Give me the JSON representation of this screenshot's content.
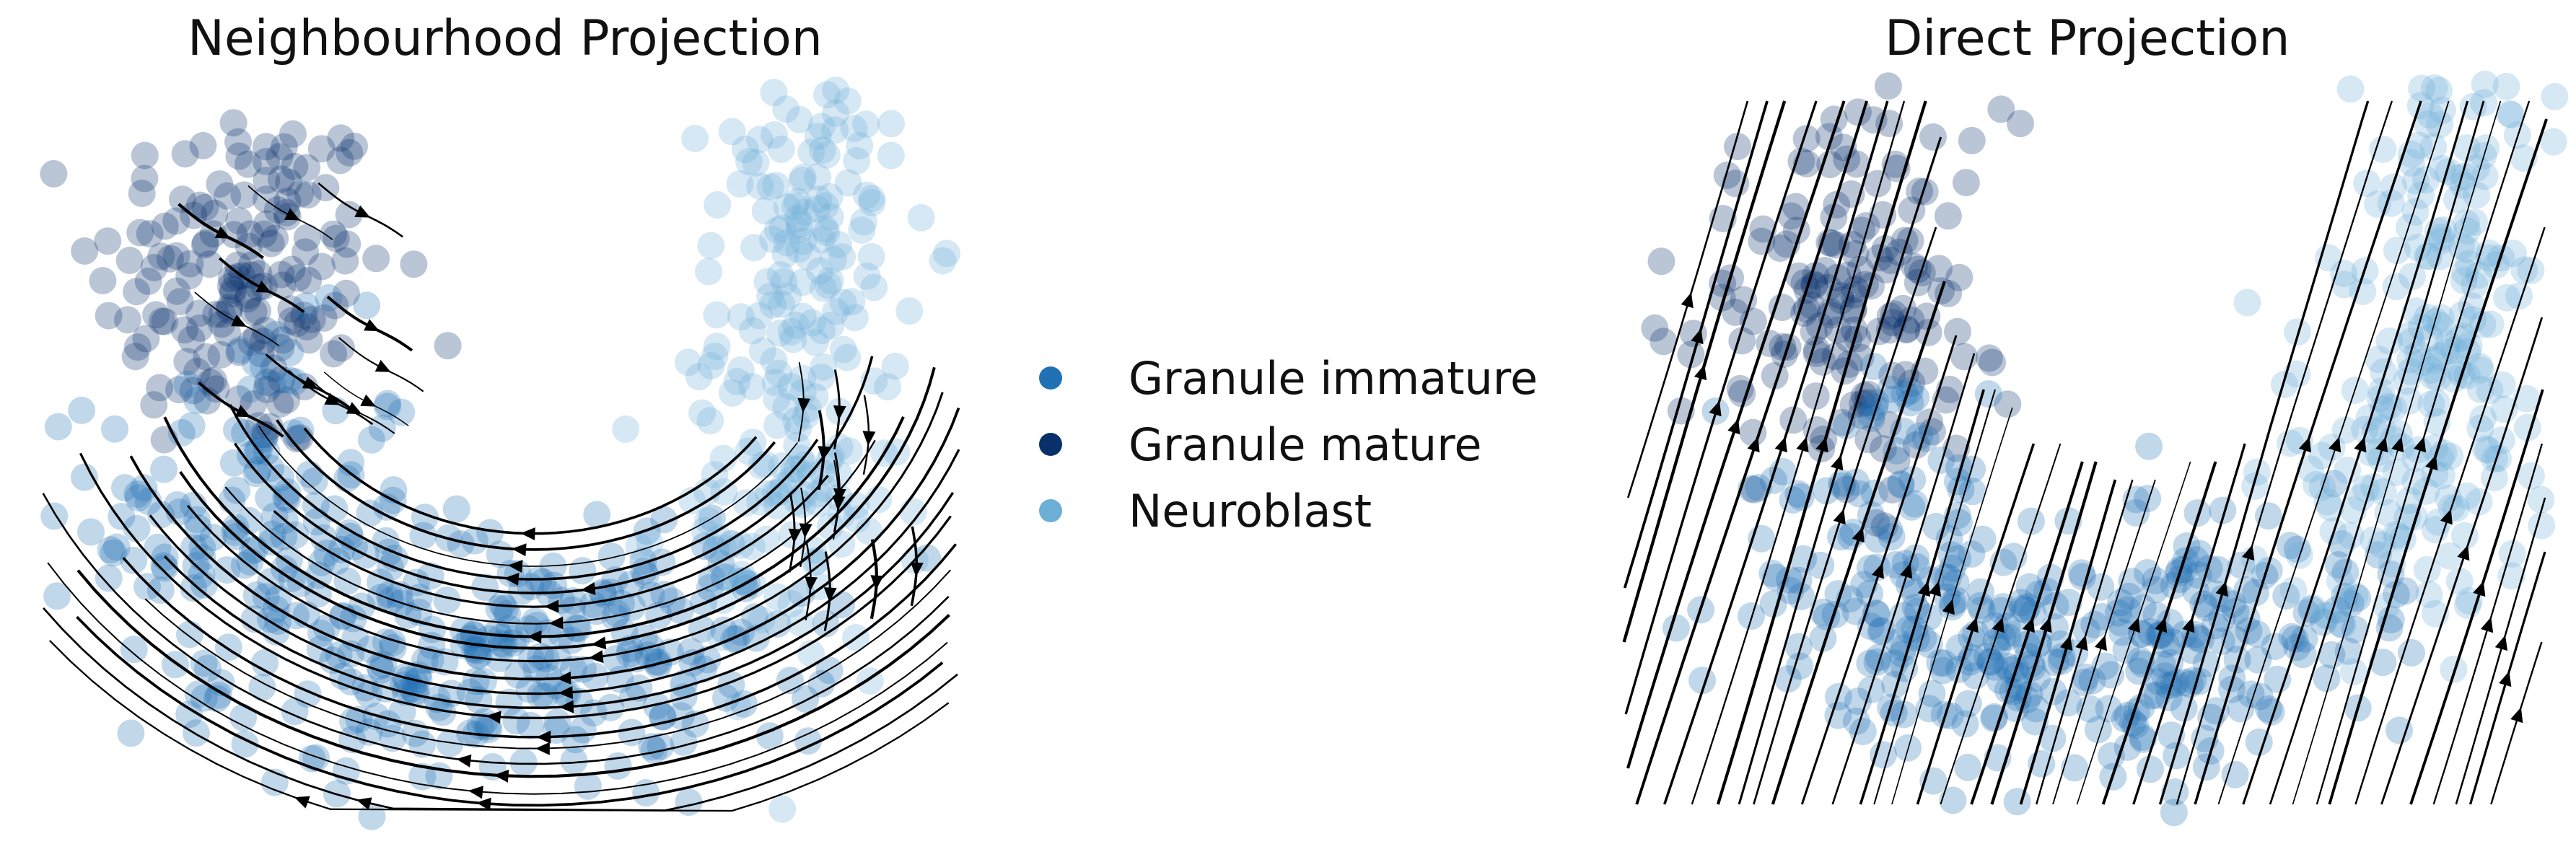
{
  "legend": [
    {
      "label": "Granule immature",
      "color": "#2171b5"
    },
    {
      "label": "Granule mature",
      "color": "#08306b"
    },
    {
      "label": "Neuroblast",
      "color": "#6baed6"
    }
  ],
  "chart_data": [
    {
      "type": "scatter",
      "title": "Neighbourhood Projection",
      "xlabel": "",
      "ylabel": "",
      "grid": false,
      "axes_visible": false,
      "legend_placement": "right",
      "overlay": "streamlines",
      "series": [
        {
          "name": "Granule mature",
          "color": "#08306b",
          "clusters": [
            {
              "cx": -2.4,
              "cy": 1.5,
              "sx": 0.55,
              "sy": 0.8,
              "n": 170
            }
          ]
        },
        {
          "name": "Granule immature",
          "color": "#2171b5",
          "clusters": [
            {
              "cx": -2.3,
              "cy": -0.6,
              "sx": 0.6,
              "sy": 0.8,
              "n": 150
            },
            {
              "cx": -0.7,
              "cy": -1.9,
              "sx": 0.9,
              "sy": 0.55,
              "n": 180
            },
            {
              "cx": 0.6,
              "cy": -1.6,
              "sx": 0.7,
              "sy": 0.5,
              "n": 90
            }
          ]
        },
        {
          "name": "Neuroblast",
          "color": "#6baed6",
          "clusters": [
            {
              "cx": 1.8,
              "cy": 1.9,
              "sx": 0.35,
              "sy": 1.3,
              "n": 170
            },
            {
              "cx": 1.6,
              "cy": -0.5,
              "sx": 0.45,
              "sy": 0.7,
              "n": 80
            }
          ]
        }
      ],
      "xlim": [
        -4,
        3
      ],
      "ylim": [
        -3.2,
        3.2
      ]
    },
    {
      "type": "scatter",
      "title": "Direct Projection",
      "xlabel": "",
      "ylabel": "",
      "grid": false,
      "axes_visible": false,
      "overlay": "streamlines",
      "series": [
        {
          "name": "Granule mature",
          "color": "#08306b",
          "clusters": [
            {
              "cx": -2.3,
              "cy": 1.3,
              "sx": 0.6,
              "sy": 0.8,
              "n": 170
            }
          ]
        },
        {
          "name": "Granule immature",
          "color": "#2171b5",
          "clusters": [
            {
              "cx": -2.0,
              "cy": -0.9,
              "sx": 0.6,
              "sy": 0.7,
              "n": 120
            },
            {
              "cx": -0.6,
              "cy": -1.9,
              "sx": 0.9,
              "sy": 0.55,
              "n": 180
            },
            {
              "cx": 0.7,
              "cy": -1.4,
              "sx": 0.7,
              "sy": 0.5,
              "n": 90
            }
          ]
        },
        {
          "name": "Neuroblast",
          "color": "#6baed6",
          "clusters": [
            {
              "cx": 2.2,
              "cy": 1.6,
              "sx": 0.35,
              "sy": 1.4,
              "n": 170
            },
            {
              "cx": 1.7,
              "cy": -0.3,
              "sx": 0.5,
              "sy": 0.8,
              "n": 80
            }
          ]
        }
      ],
      "xlim": [
        -4,
        3
      ],
      "ylim": [
        -3.2,
        3.2
      ]
    }
  ]
}
